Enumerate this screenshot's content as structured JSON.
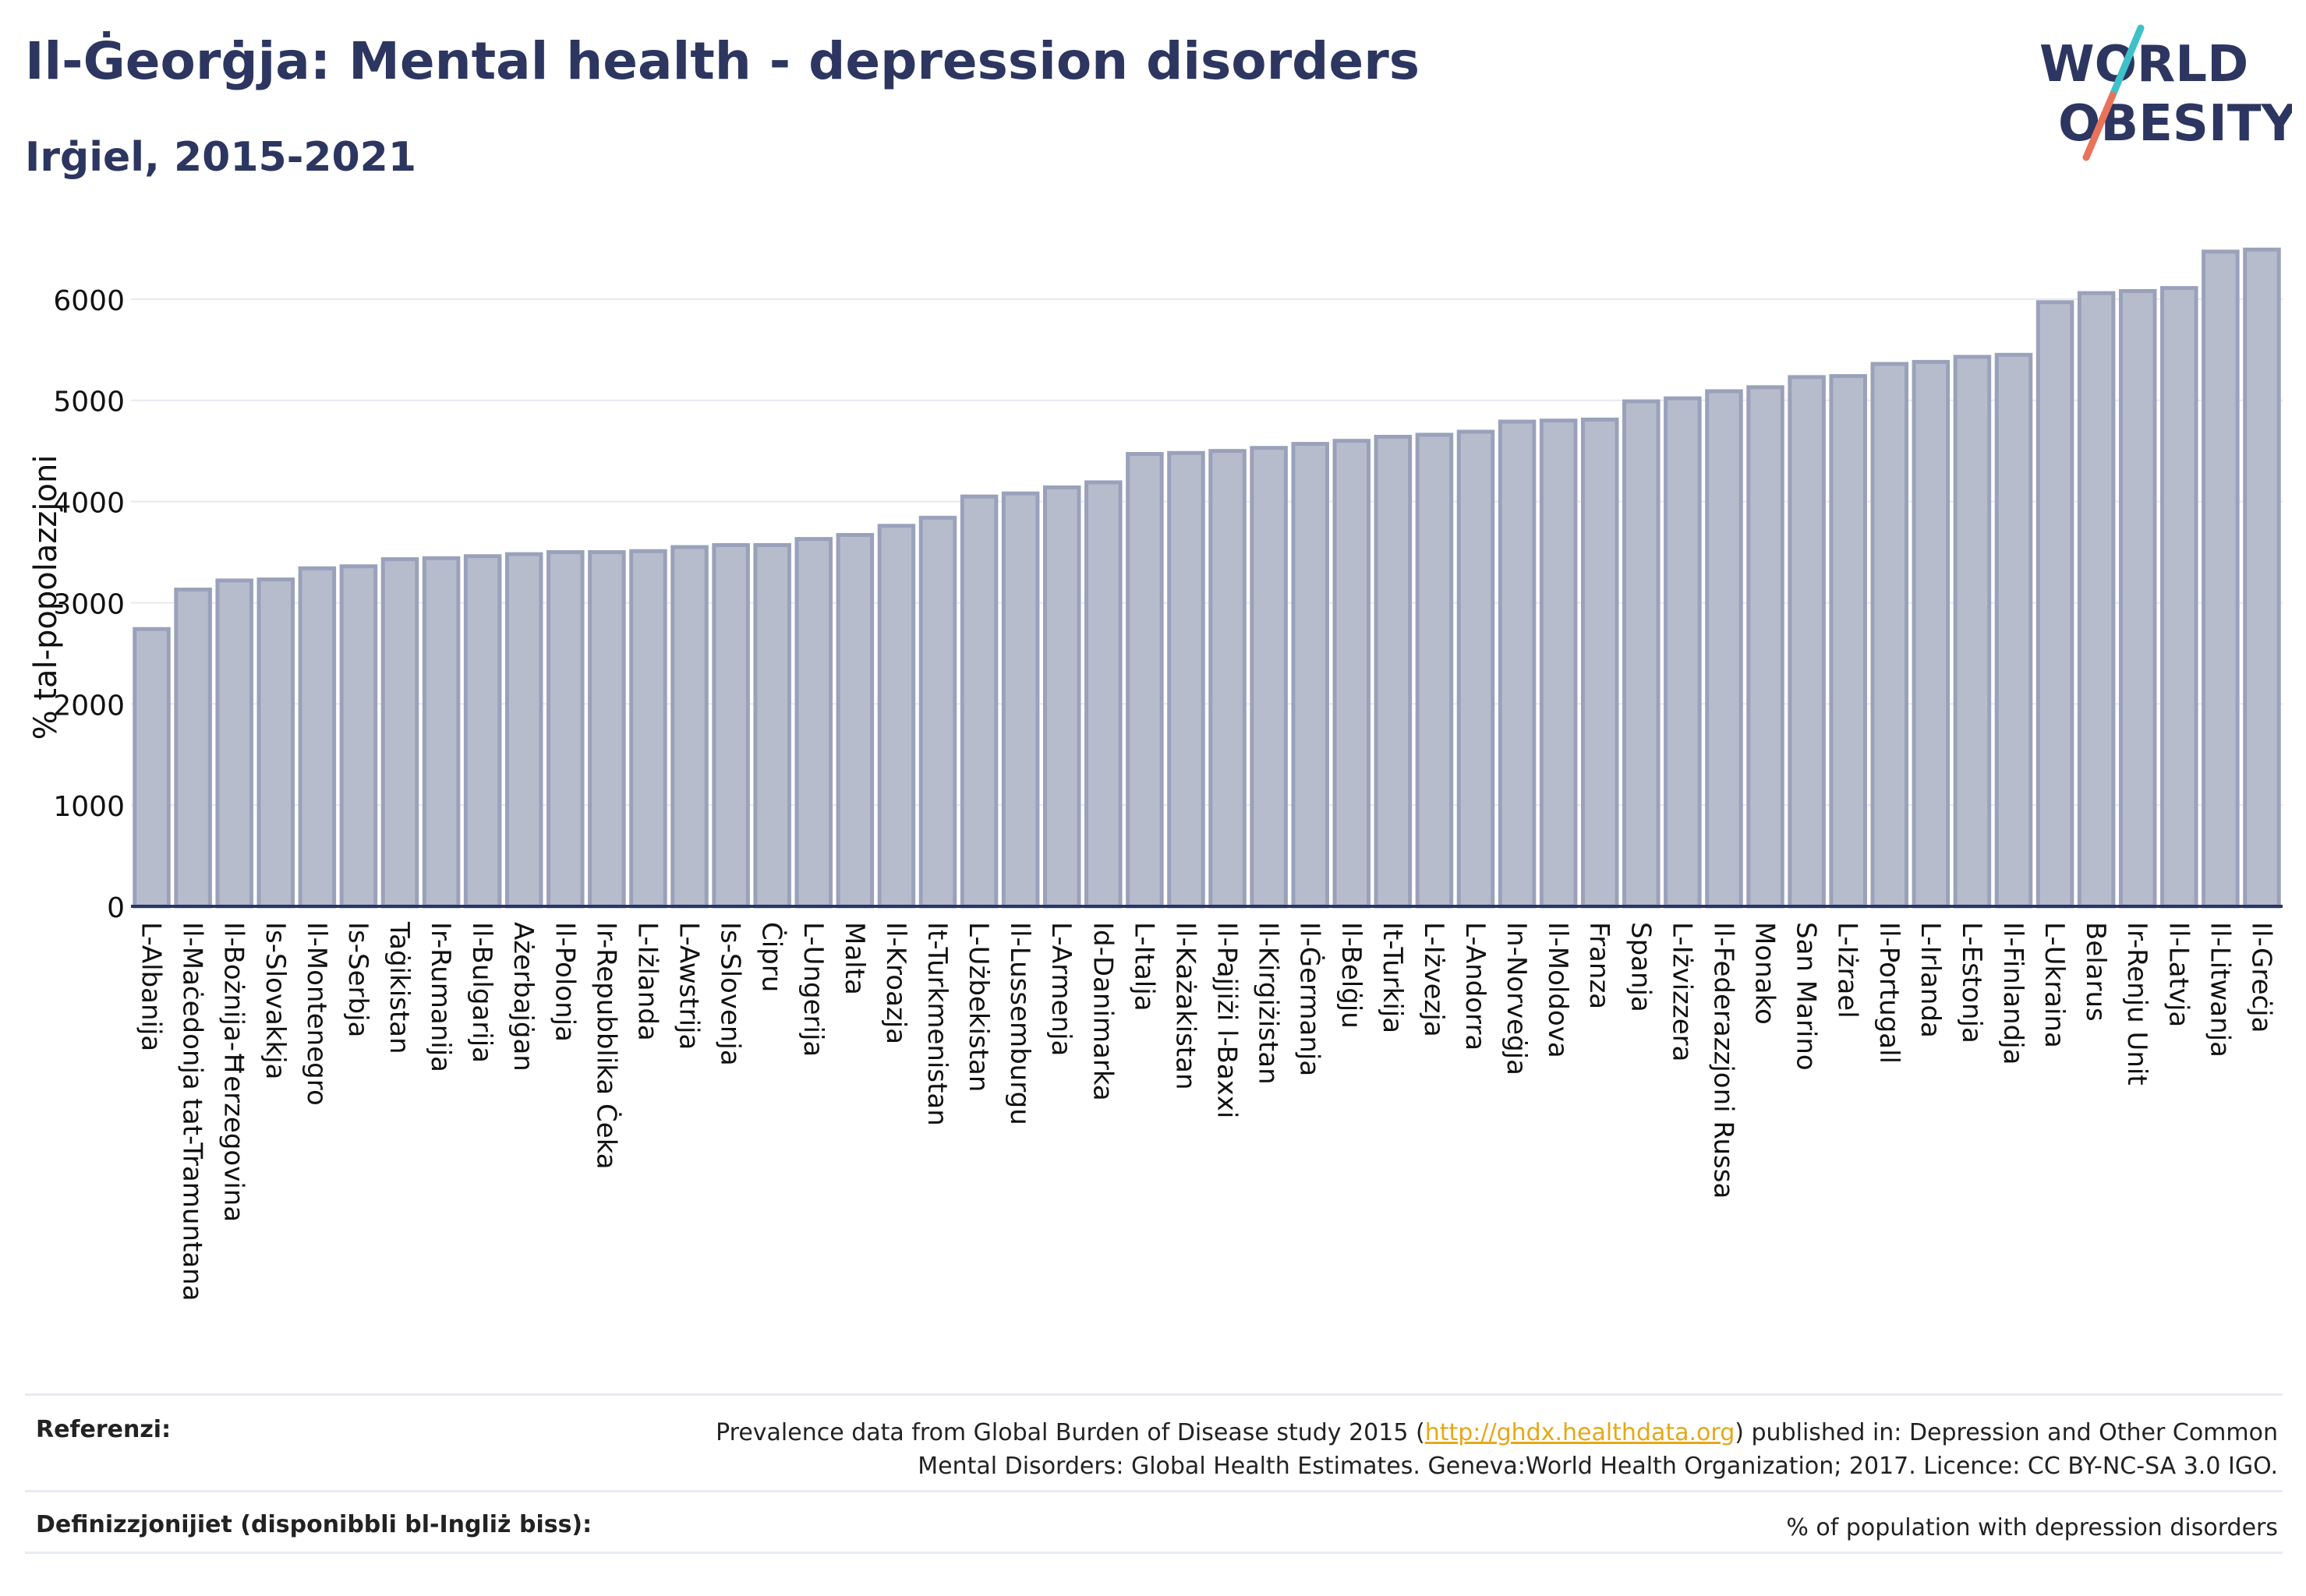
{
  "header": {
    "title": "Il-Ġeorġja: Mental health - depression disorders",
    "subtitle": "Irġiel, 2015-2021"
  },
  "logo": {
    "line1": "WORLD",
    "line2": "OBESITY",
    "slash_color_top": "#3ec1c9",
    "slash_color_bottom": "#e8735a"
  },
  "chart_data": {
    "type": "bar",
    "ylabel": "% tal-popolazzjoni",
    "ylim": [
      0,
      6800
    ],
    "yticks": [
      0,
      1000,
      2000,
      3000,
      4000,
      5000,
      6000
    ],
    "grid": true,
    "bar_color": "#b7bccd",
    "bar_edge_color": "#9aa1ba",
    "categories": [
      "L-Albanija",
      "Il-Maċedonja tat-Tramuntana",
      "Il-Bożnija-Ħerzegovina",
      "Is-Slovakkja",
      "Il-Montenegro",
      "Is-Serbja",
      "Taġikistan",
      "Ir-Rumanija",
      "Il-Bulgarija",
      "Ażerbajġan",
      "Il-Polonja",
      "Ir-Repubblika Ċeka",
      "L-Iżlanda",
      "L-Awstrija",
      "Is-Slovenja",
      "Ċipru",
      "L-Ungerija",
      "Malta",
      "Il-Kroazja",
      "It-Turkmenistan",
      "L-Użbekistan",
      "Il-Lussemburgu",
      "L-Armenja",
      "Id-Danimarka",
      "L-Italja",
      "Il-Każakistan",
      "Il-Pajjiżi l-Baxxi",
      "Il-Kirgiżistan",
      "Il-Ġermanja",
      "Il-Belġju",
      "It-Turkija",
      "L-Iżvezja",
      "L-Andorra",
      "In-Norveġja",
      "Il-Moldova",
      "Franza",
      "Spanja",
      "L-Iżvizzera",
      "Il-Federazzjoni Russa",
      "Monako",
      "San Marino",
      "L-Iżrael",
      "Il-Portugall",
      "L-Irlanda",
      "L-Estonja",
      "Il-Finlandja",
      "L-Ukraina",
      "Belarus",
      "Ir-Renju Unit",
      "Il-Latvja",
      "Il-Litwanja",
      "Il-Greċja"
    ],
    "values": [
      2740,
      3130,
      3220,
      3230,
      3340,
      3360,
      3430,
      3440,
      3460,
      3480,
      3500,
      3500,
      3510,
      3550,
      3570,
      3570,
      3630,
      3670,
      3760,
      3840,
      4050,
      4080,
      4140,
      4190,
      4470,
      4480,
      4500,
      4530,
      4570,
      4600,
      4640,
      4660,
      4690,
      4790,
      4800,
      4810,
      4990,
      5020,
      5090,
      5130,
      5230,
      5240,
      5360,
      5380,
      5430,
      5450,
      5970,
      6060,
      6080,
      6110,
      6470,
      6490
    ]
  },
  "footer": {
    "references_label": "Referenzi:",
    "references_pre": "Prevalence data from Global Burden of Disease study 2015 (",
    "references_link": "http://ghdx.healthdata.org",
    "references_post": ") published in: Depression and Other Common",
    "references_line2": "Mental Disorders: Global Health Estimates. Geneva:World Health Organization; 2017. Licence: CC BY-NC-SA 3.0 IGO.",
    "definitions_label": "Definizzjonijiet (disponibbli bl-Ingliż biss):",
    "definitions_value": "% of population with depression disorders"
  }
}
